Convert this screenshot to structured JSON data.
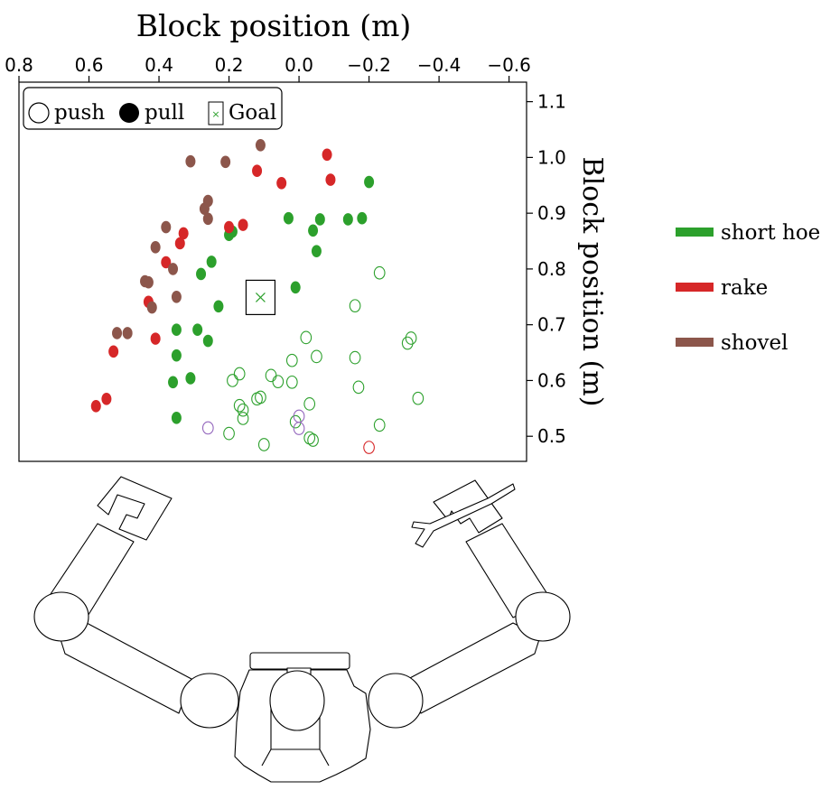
{
  "chart_data": {
    "type": "scatter",
    "title": "",
    "xlabel": "Block position (m)",
    "ylabel": "Block position (m)",
    "x_axis_position": "top",
    "y_axis_position": "right",
    "xlim": [
      0.8,
      -0.65
    ],
    "ylim": [
      0.455,
      1.135
    ],
    "x_ticks": [
      0.8,
      0.6,
      0.4,
      0.2,
      0.0,
      -0.2,
      -0.4,
      -0.6
    ],
    "x_tick_labels": [
      "0.8",
      "0.6",
      "0.4",
      "0.2",
      "0.0",
      "−0.2",
      "−0.4",
      "−0.6"
    ],
    "y_ticks": [
      0.5,
      0.6,
      0.7,
      0.8,
      0.9,
      1.0,
      1.1
    ],
    "y_tick_labels": [
      "0.5",
      "0.6",
      "0.7",
      "0.8",
      "0.9",
      "1.0",
      "1.1"
    ],
    "grid": false,
    "marker_legend": {
      "placement": "top-left",
      "entries": [
        {
          "label": "push",
          "marker": "open-circle"
        },
        {
          "label": "pull",
          "marker": "filled-circle"
        },
        {
          "label": "Goal",
          "marker": "x-in-box"
        }
      ]
    },
    "goal": {
      "x": 0.11,
      "y": 0.749
    },
    "series": [
      {
        "name": "short hoe",
        "color": "#2ca02c",
        "pull": [
          [
            -0.2,
            0.956
          ],
          [
            0.03,
            0.891
          ],
          [
            -0.06,
            0.889
          ],
          [
            -0.18,
            0.891
          ],
          [
            -0.14,
            0.889
          ],
          [
            -0.04,
            0.869
          ],
          [
            0.19,
            0.867
          ],
          [
            0.2,
            0.861
          ],
          [
            -0.05,
            0.832
          ],
          [
            0.25,
            0.813
          ],
          [
            0.28,
            0.791
          ],
          [
            0.01,
            0.767
          ],
          [
            0.23,
            0.733
          ],
          [
            0.35,
            0.691
          ],
          [
            0.29,
            0.691
          ],
          [
            0.26,
            0.671
          ],
          [
            0.35,
            0.645
          ],
          [
            0.31,
            0.604
          ],
          [
            0.36,
            0.597
          ],
          [
            0.35,
            0.533
          ]
        ],
        "push": [
          [
            -0.23,
            0.793
          ],
          [
            -0.16,
            0.734
          ],
          [
            -0.02,
            0.677
          ],
          [
            -0.32,
            0.676
          ],
          [
            -0.31,
            0.667
          ],
          [
            -0.05,
            0.643
          ],
          [
            -0.16,
            0.641
          ],
          [
            0.02,
            0.636
          ],
          [
            0.08,
            0.609
          ],
          [
            0.17,
            0.612
          ],
          [
            0.19,
            0.6
          ],
          [
            0.06,
            0.598
          ],
          [
            0.02,
            0.597
          ],
          [
            -0.17,
            0.588
          ],
          [
            -0.34,
            0.568
          ],
          [
            0.11,
            0.57
          ],
          [
            0.12,
            0.567
          ],
          [
            -0.03,
            0.558
          ],
          [
            0.17,
            0.555
          ],
          [
            0.16,
            0.547
          ],
          [
            0.16,
            0.532
          ],
          [
            0.01,
            0.526
          ],
          [
            -0.23,
            0.52
          ],
          [
            0.2,
            0.505
          ],
          [
            -0.03,
            0.497
          ],
          [
            -0.04,
            0.493
          ],
          [
            0.1,
            0.485
          ]
        ]
      },
      {
        "name": "rake",
        "color": "#d62728",
        "pull": [
          [
            -0.08,
            1.005
          ],
          [
            0.12,
            0.976
          ],
          [
            -0.09,
            0.96
          ],
          [
            0.05,
            0.954
          ],
          [
            0.2,
            0.875
          ],
          [
            0.16,
            0.879
          ],
          [
            0.33,
            0.864
          ],
          [
            0.34,
            0.846
          ],
          [
            0.38,
            0.812
          ],
          [
            0.43,
            0.741
          ],
          [
            0.41,
            0.675
          ],
          [
            0.53,
            0.652
          ],
          [
            0.55,
            0.567
          ],
          [
            0.58,
            0.554
          ]
        ],
        "push": [
          [
            -0.2,
            0.48
          ]
        ]
      },
      {
        "name": "shovel",
        "color": "#8c564b",
        "pull": [
          [
            0.11,
            1.022
          ],
          [
            0.31,
            0.993
          ],
          [
            0.21,
            0.992
          ],
          [
            0.26,
            0.922
          ],
          [
            0.27,
            0.908
          ],
          [
            0.26,
            0.89
          ],
          [
            0.38,
            0.875
          ],
          [
            0.41,
            0.839
          ],
          [
            0.36,
            0.8
          ],
          [
            0.44,
            0.778
          ],
          [
            0.43,
            0.776
          ],
          [
            0.35,
            0.75
          ],
          [
            0.42,
            0.731
          ],
          [
            0.49,
            0.685
          ],
          [
            0.52,
            0.685
          ]
        ],
        "push": []
      },
      {
        "name": "",
        "color": "#9467bd",
        "pull": [],
        "push": [
          [
            0.26,
            0.515
          ],
          [
            0.0,
            0.536
          ],
          [
            0.0,
            0.514
          ]
        ]
      }
    ],
    "side_legend": {
      "placement": "right",
      "entries": [
        "short hoe",
        "rake",
        "shovel"
      ]
    }
  }
}
